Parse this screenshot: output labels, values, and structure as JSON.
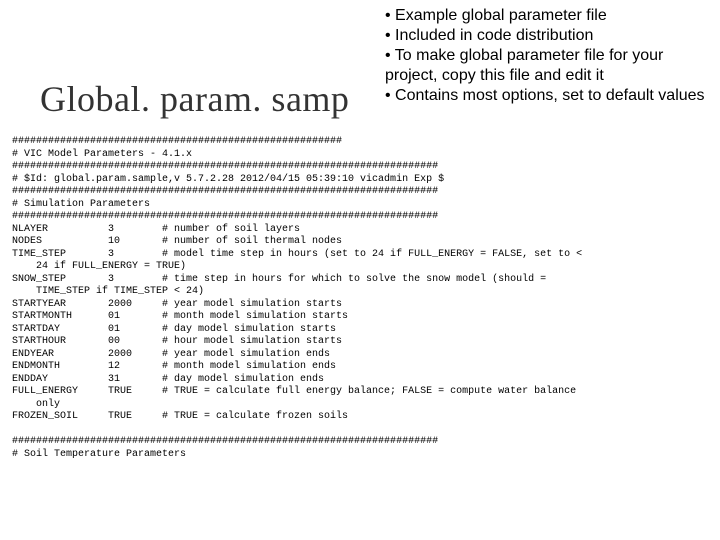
{
  "title": "Global. param. samp",
  "bullets": {
    "items": [
      "Example global parameter file",
      "Included in code distribution",
      "To make global parameter file for your project, copy this file and edit it",
      "Contains most options, set to default values"
    ]
  },
  "code": {
    "lines": [
      "#######################################################",
      "# VIC Model Parameters - 4.1.x",
      "#######################################################################",
      "# $Id: global.param.sample,v 5.7.2.28 2012/04/15 05:39:10 vicadmin Exp $",
      "#######################################################################",
      "# Simulation Parameters",
      "#######################################################################",
      "NLAYER          3        # number of soil layers",
      "NODES           10       # number of soil thermal nodes",
      "TIME_STEP       3        # model time step in hours (set to 24 if FULL_ENERGY = FALSE, set to <",
      "    24 if FULL_ENERGY = TRUE)",
      "SNOW_STEP       3        # time step in hours for which to solve the snow model (should =",
      "    TIME_STEP if TIME_STEP < 24)",
      "STARTYEAR       2000     # year model simulation starts",
      "STARTMONTH      01       # month model simulation starts",
      "STARTDAY        01       # day model simulation starts",
      "STARTHOUR       00       # hour model simulation starts",
      "ENDYEAR         2000     # year model simulation ends",
      "ENDMONTH        12       # month model simulation ends",
      "ENDDAY          31       # day model simulation ends",
      "FULL_ENERGY     TRUE     # TRUE = calculate full energy balance; FALSE = compute water balance",
      "    only",
      "FROZEN_SOIL     TRUE     # TRUE = calculate frozen soils",
      "",
      "#######################################################################",
      "# Soil Temperature Parameters"
    ]
  },
  "colors": {
    "background": "#ffffff",
    "title_color": "#333333",
    "text_color": "#000000"
  },
  "typography": {
    "title_fontsize": 36,
    "bullet_fontsize": 16,
    "code_fontsize": 10
  }
}
